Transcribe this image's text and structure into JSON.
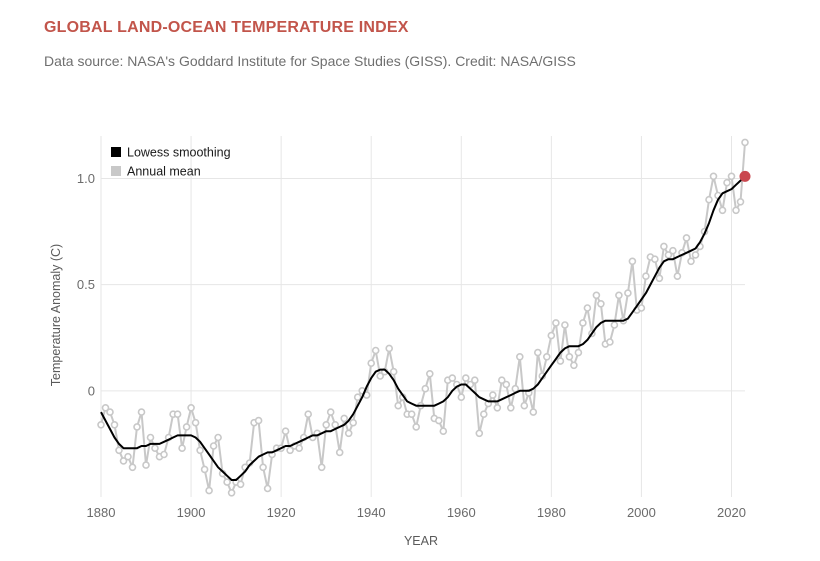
{
  "header": {
    "title": "GLOBAL LAND-OCEAN TEMPERATURE INDEX",
    "subtitle": "Data source: NASA's Goddard Institute for Space Studies (GISS). Credit: NASA/GISS"
  },
  "colors": {
    "title": "#c2554b",
    "annual": "#c8c8c8",
    "lowess": "#000000",
    "highlight": "#c9474f",
    "grid": "#e6e6e6"
  },
  "chart_data": {
    "type": "line",
    "title": "GLOBAL LAND-OCEAN TEMPERATURE INDEX",
    "xlabel": "YEAR",
    "ylabel": "Temperature Anomaly (C)",
    "xlim": [
      1880,
      2023
    ],
    "ylim": [
      -0.5,
      1.2
    ],
    "x_ticks": [
      1880,
      1900,
      1920,
      1940,
      1960,
      1980,
      2000,
      2020
    ],
    "y_ticks": [
      0,
      0.5,
      1.0
    ],
    "x_tick_labels": [
      "1880",
      "1900",
      "1920",
      "1940",
      "1960",
      "1980",
      "2000",
      "2020"
    ],
    "y_tick_labels": [
      "0",
      "0.5",
      "1.0"
    ],
    "legend": [
      "Lowess smoothing",
      "Annual mean"
    ],
    "legend_position": "top-left",
    "grid": true,
    "x": [
      1880,
      1881,
      1882,
      1883,
      1884,
      1885,
      1886,
      1887,
      1888,
      1889,
      1890,
      1891,
      1892,
      1893,
      1894,
      1895,
      1896,
      1897,
      1898,
      1899,
      1900,
      1901,
      1902,
      1903,
      1904,
      1905,
      1906,
      1907,
      1908,
      1909,
      1910,
      1911,
      1912,
      1913,
      1914,
      1915,
      1916,
      1917,
      1918,
      1919,
      1920,
      1921,
      1922,
      1923,
      1924,
      1925,
      1926,
      1927,
      1928,
      1929,
      1930,
      1931,
      1932,
      1933,
      1934,
      1935,
      1936,
      1937,
      1938,
      1939,
      1940,
      1941,
      1942,
      1943,
      1944,
      1945,
      1946,
      1947,
      1948,
      1949,
      1950,
      1951,
      1952,
      1953,
      1954,
      1955,
      1956,
      1957,
      1958,
      1959,
      1960,
      1961,
      1962,
      1963,
      1964,
      1965,
      1966,
      1967,
      1968,
      1969,
      1970,
      1971,
      1972,
      1973,
      1974,
      1975,
      1976,
      1977,
      1978,
      1979,
      1980,
      1981,
      1982,
      1983,
      1984,
      1985,
      1986,
      1987,
      1988,
      1989,
      1990,
      1991,
      1992,
      1993,
      1994,
      1995,
      1996,
      1997,
      1998,
      1999,
      2000,
      2001,
      2002,
      2003,
      2004,
      2005,
      2006,
      2007,
      2008,
      2009,
      2010,
      2011,
      2012,
      2013,
      2014,
      2015,
      2016,
      2017,
      2018,
      2019,
      2020,
      2021,
      2022,
      2023
    ],
    "series": [
      {
        "name": "Annual mean",
        "values": [
          -0.16,
          -0.08,
          -0.1,
          -0.16,
          -0.28,
          -0.33,
          -0.31,
          -0.36,
          -0.17,
          -0.1,
          -0.35,
          -0.22,
          -0.27,
          -0.31,
          -0.3,
          -0.22,
          -0.11,
          -0.11,
          -0.27,
          -0.17,
          -0.08,
          -0.15,
          -0.28,
          -0.37,
          -0.47,
          -0.26,
          -0.22,
          -0.39,
          -0.43,
          -0.48,
          -0.43,
          -0.44,
          -0.36,
          -0.34,
          -0.15,
          -0.14,
          -0.36,
          -0.46,
          -0.3,
          -0.27,
          -0.27,
          -0.19,
          -0.28,
          -0.26,
          -0.27,
          -0.22,
          -0.11,
          -0.22,
          -0.2,
          -0.36,
          -0.16,
          -0.1,
          -0.16,
          -0.29,
          -0.13,
          -0.2,
          -0.15,
          -0.03,
          0.0,
          -0.02,
          0.13,
          0.19,
          0.07,
          0.09,
          0.2,
          0.09,
          -0.07,
          -0.03,
          -0.11,
          -0.11,
          -0.17,
          -0.07,
          0.01,
          0.08,
          -0.13,
          -0.14,
          -0.19,
          0.05,
          0.06,
          0.03,
          -0.03,
          0.06,
          0.03,
          0.05,
          -0.2,
          -0.11,
          -0.06,
          -0.02,
          -0.08,
          0.05,
          0.03,
          -0.08,
          0.01,
          0.16,
          -0.07,
          -0.01,
          -0.1,
          0.18,
          0.07,
          0.16,
          0.26,
          0.32,
          0.14,
          0.31,
          0.16,
          0.12,
          0.18,
          0.32,
          0.39,
          0.27,
          0.45,
          0.41,
          0.22,
          0.23,
          0.31,
          0.45,
          0.33,
          0.46,
          0.61,
          0.38,
          0.39,
          0.54,
          0.63,
          0.62,
          0.53,
          0.68,
          0.64,
          0.66,
          0.54,
          0.65,
          0.72,
          0.61,
          0.64,
          0.68,
          0.75,
          0.9,
          1.01,
          0.92,
          0.85,
          0.98,
          1.01,
          0.85,
          0.89,
          1.17
        ]
      },
      {
        "name": "Lowess smoothing",
        "values": [
          -0.1,
          -0.14,
          -0.18,
          -0.22,
          -0.25,
          -0.27,
          -0.27,
          -0.27,
          -0.27,
          -0.26,
          -0.26,
          -0.25,
          -0.25,
          -0.25,
          -0.24,
          -0.23,
          -0.22,
          -0.21,
          -0.21,
          -0.21,
          -0.21,
          -0.22,
          -0.24,
          -0.27,
          -0.3,
          -0.33,
          -0.36,
          -0.38,
          -0.4,
          -0.42,
          -0.42,
          -0.4,
          -0.38,
          -0.35,
          -0.33,
          -0.31,
          -0.3,
          -0.29,
          -0.29,
          -0.28,
          -0.27,
          -0.26,
          -0.26,
          -0.25,
          -0.24,
          -0.23,
          -0.22,
          -0.21,
          -0.21,
          -0.2,
          -0.19,
          -0.19,
          -0.18,
          -0.17,
          -0.16,
          -0.14,
          -0.11,
          -0.07,
          -0.03,
          0.02,
          0.06,
          0.09,
          0.1,
          0.1,
          0.08,
          0.05,
          0.01,
          -0.02,
          -0.05,
          -0.06,
          -0.07,
          -0.07,
          -0.07,
          -0.07,
          -0.07,
          -0.06,
          -0.05,
          -0.03,
          0.0,
          0.02,
          0.03,
          0.03,
          0.01,
          -0.01,
          -0.03,
          -0.04,
          -0.05,
          -0.05,
          -0.05,
          -0.04,
          -0.03,
          -0.02,
          -0.01,
          0.0,
          0.0,
          0.0,
          0.01,
          0.03,
          0.06,
          0.09,
          0.12,
          0.15,
          0.18,
          0.2,
          0.21,
          0.21,
          0.21,
          0.22,
          0.24,
          0.27,
          0.3,
          0.32,
          0.33,
          0.33,
          0.33,
          0.33,
          0.33,
          0.34,
          0.37,
          0.4,
          0.43,
          0.46,
          0.5,
          0.54,
          0.58,
          0.61,
          0.62,
          0.62,
          0.63,
          0.64,
          0.65,
          0.66,
          0.67,
          0.7,
          0.74,
          0.79,
          0.85,
          0.9,
          0.93,
          0.94,
          0.95,
          0.97,
          0.99,
          1.01
        ]
      }
    ],
    "highlight_point": {
      "x": 2023,
      "y": 1.01
    }
  }
}
